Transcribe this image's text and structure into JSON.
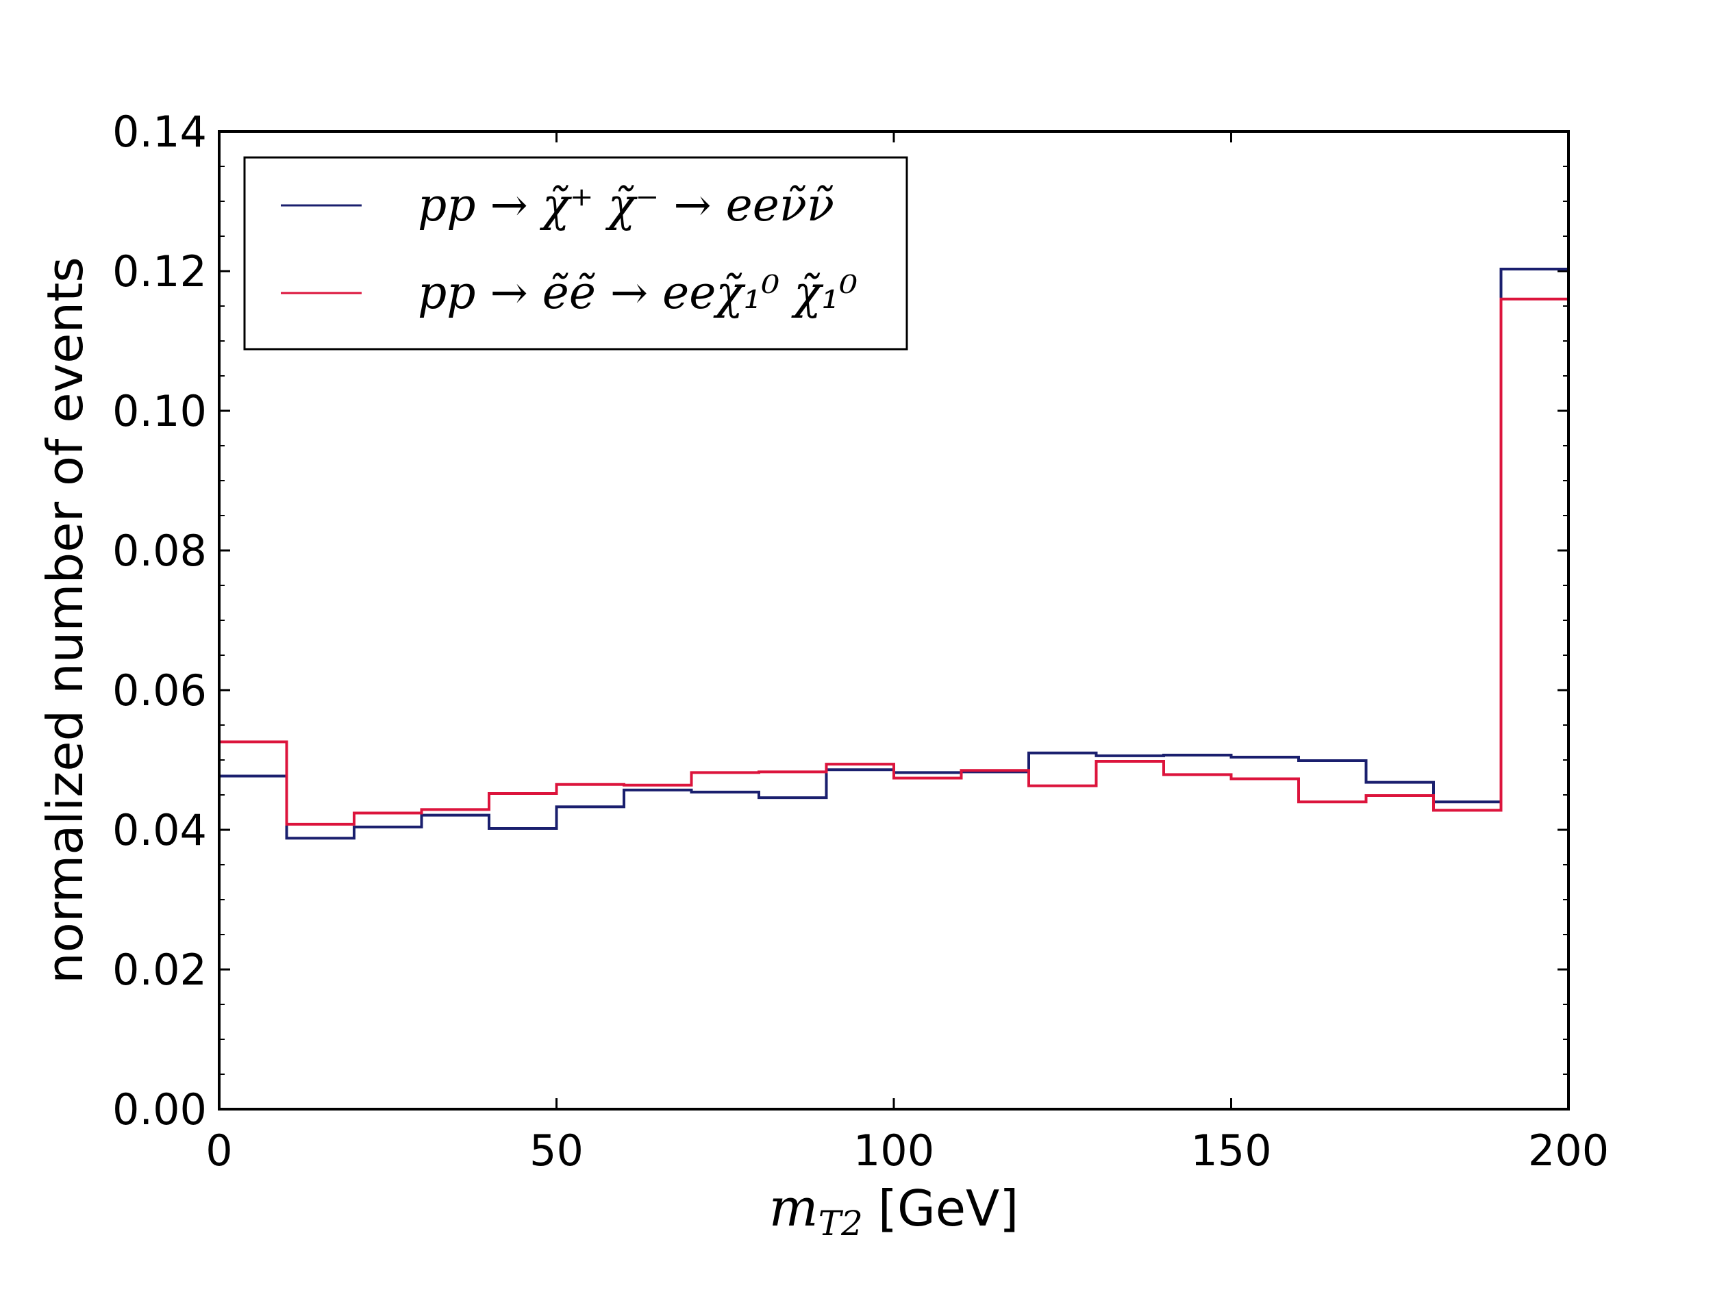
{
  "chart_data": {
    "type": "line",
    "style": "step histogram",
    "title": "",
    "xlabel": {
      "symbol": "m",
      "subscript": "T2",
      "unit": "[GeV]"
    },
    "ylabel": "normalized number of events",
    "xlim": [
      0,
      200
    ],
    "ylim": [
      0,
      0.14
    ],
    "xticks": [
      0,
      50,
      100,
      150,
      200
    ],
    "xtick_labels": [
      "0",
      "50",
      "100",
      "150",
      "200"
    ],
    "yticks": [
      0.0,
      0.02,
      0.04,
      0.06,
      0.08,
      0.1,
      0.12,
      0.14
    ],
    "ytick_labels": [
      "0.00",
      "0.02",
      "0.04",
      "0.06",
      "0.08",
      "0.10",
      "0.12",
      "0.14"
    ],
    "grid": false,
    "legend_position": "top-left",
    "bin_edges": [
      0,
      10,
      20,
      30,
      40,
      50,
      60,
      70,
      80,
      90,
      100,
      110,
      120,
      130,
      140,
      150,
      160,
      170,
      180,
      190,
      200
    ],
    "series": [
      {
        "name": "pp → χ̃⁺ χ̃⁻ → ee ν̃ ν̃",
        "legend_label": "pp → χ̃⁺ χ̃⁻  → eeν̃ν̃",
        "color": "#1a1f6e",
        "values": [
          0.0477,
          0.0388,
          0.0404,
          0.0421,
          0.0402,
          0.0433,
          0.0457,
          0.0454,
          0.0446,
          0.0486,
          0.0482,
          0.0483,
          0.051,
          0.0506,
          0.0507,
          0.0504,
          0.0499,
          0.0468,
          0.044,
          0.1203
        ]
      },
      {
        "name": "pp → ẽ ẽ → ee χ̃⁰₁ χ̃⁰₁",
        "legend_label": "pp → ẽẽ → eeχ̃₁⁰ χ̃₁⁰",
        "color": "#dc143c",
        "values": [
          0.0526,
          0.0408,
          0.0424,
          0.0429,
          0.0452,
          0.0465,
          0.0464,
          0.0482,
          0.0483,
          0.0494,
          0.0474,
          0.0485,
          0.0463,
          0.0498,
          0.0479,
          0.0473,
          0.044,
          0.0449,
          0.0428,
          0.116
        ]
      }
    ]
  }
}
